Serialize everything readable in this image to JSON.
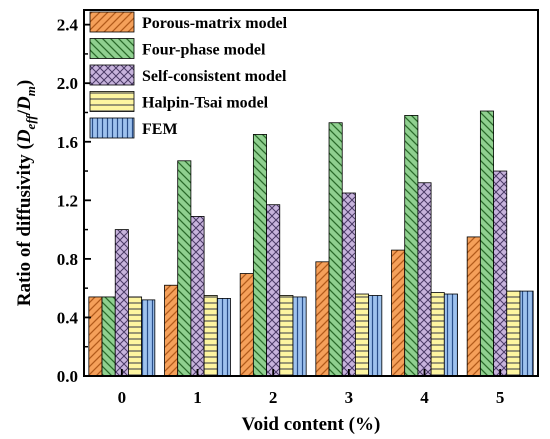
{
  "chart_data": {
    "type": "bar",
    "xlabel": "Void content (%)",
    "ylabel_parts": {
      "prefix": "Ratio of diffusivity (",
      "d1": "D",
      "sub1": "eff",
      "slash": "/",
      "d2": "D",
      "sub2": "m",
      "suffix": ")"
    },
    "categories": [
      "0",
      "1",
      "2",
      "3",
      "4",
      "5"
    ],
    "yticks": [
      "0.0",
      "0.4",
      "0.8",
      "1.2",
      "1.6",
      "2.0",
      "2.4"
    ],
    "ylim": [
      0,
      2.5
    ],
    "grid": false,
    "legend_position": "top-left",
    "series": [
      {
        "name": "Porous-matrix model",
        "pattern": "diag-right",
        "color": "#f5a05a",
        "values": [
          0.54,
          0.62,
          0.7,
          0.78,
          0.86,
          0.95
        ]
      },
      {
        "name": "Four-phase model",
        "pattern": "diag-left",
        "color": "#8fd08f",
        "values": [
          0.54,
          1.47,
          1.65,
          1.73,
          1.78,
          1.81
        ]
      },
      {
        "name": "Self-consistent model",
        "pattern": "cross",
        "color": "#c7b3dc",
        "values": [
          1.0,
          1.09,
          1.17,
          1.25,
          1.32,
          1.4
        ]
      },
      {
        "name": "Halpin-Tsai model",
        "pattern": "horizontal",
        "color": "#fdf5a0",
        "values": [
          0.54,
          0.55,
          0.55,
          0.56,
          0.57,
          0.58
        ]
      },
      {
        "name": "FEM",
        "pattern": "vertical",
        "color": "#9ec2ee",
        "values": [
          0.52,
          0.53,
          0.54,
          0.55,
          0.56,
          0.58
        ]
      }
    ]
  }
}
